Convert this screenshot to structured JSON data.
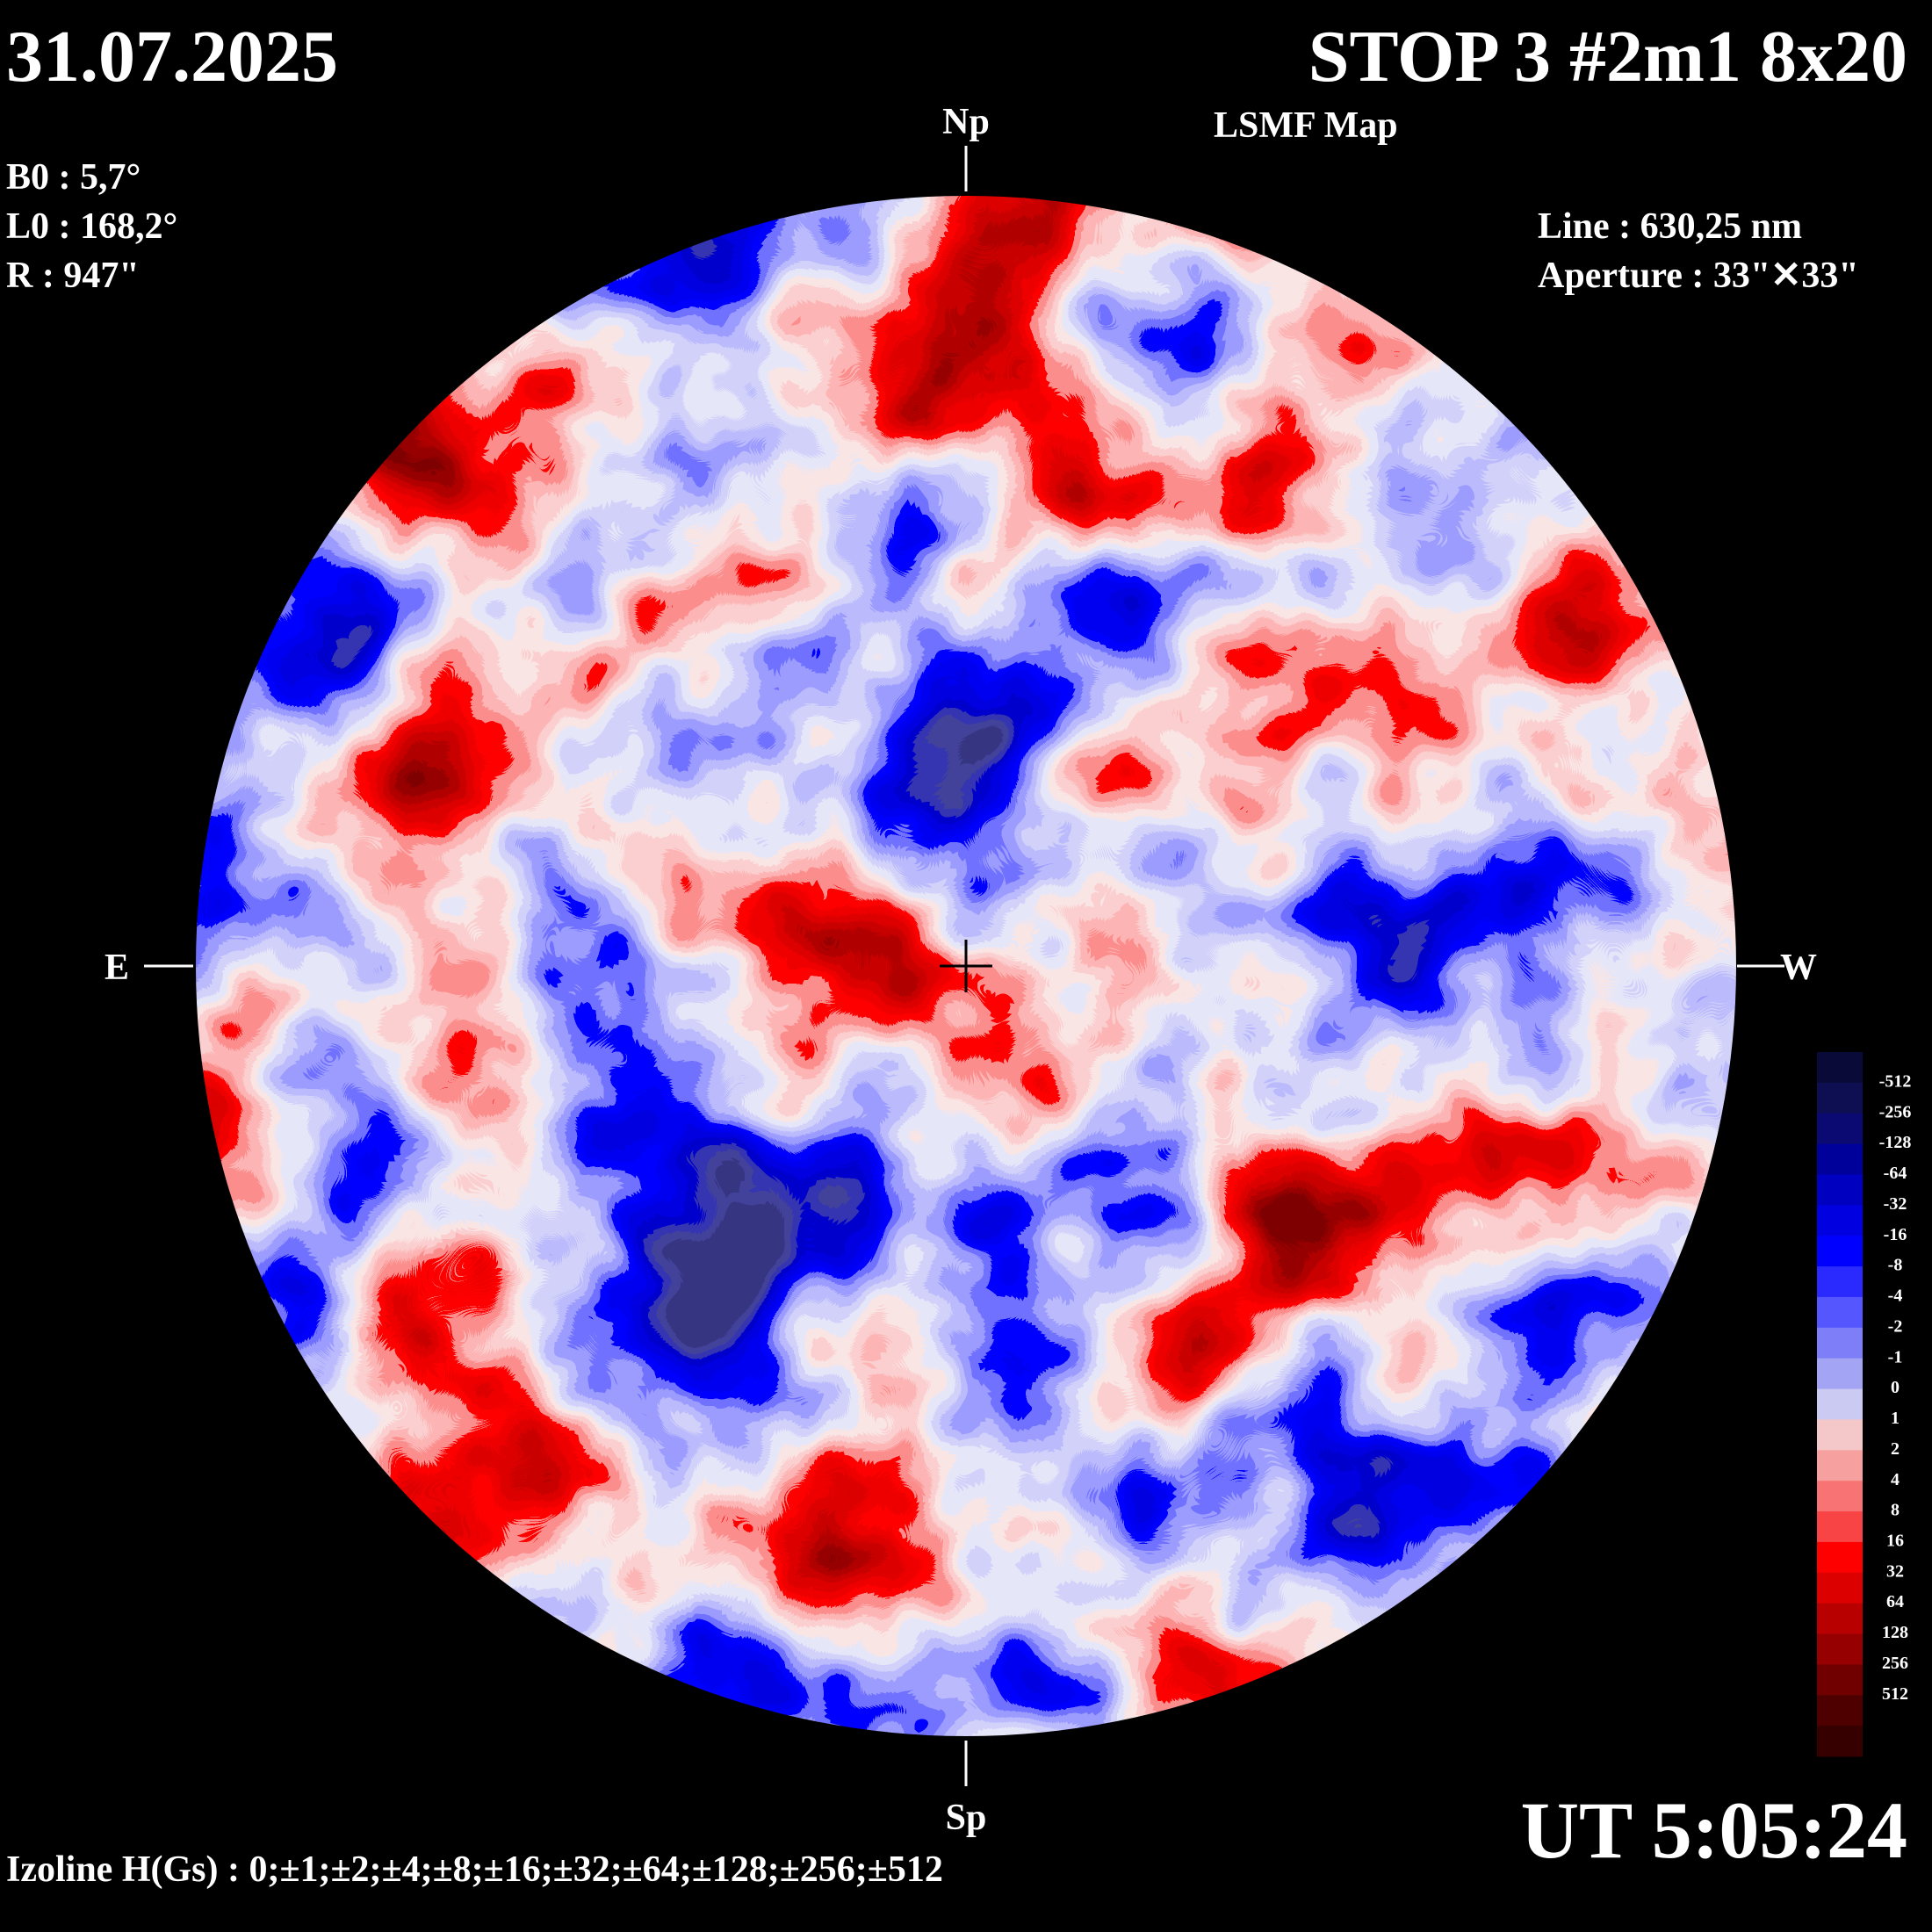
{
  "header": {
    "date": "31.07.2025",
    "title": "STOP 3 #2m1 8x20",
    "subtitle": "LSMF  Map",
    "params_left": [
      "B0 : 5,7°",
      "L0 : 168,2°",
      "R  : 947\""
    ],
    "params_right": [
      "Line :  630,25 nm",
      "Aperture : 33\"✕33\""
    ]
  },
  "compass": {
    "north": "Np",
    "south": "Sp",
    "east": "E",
    "west": "W"
  },
  "footer": {
    "time": "UT 5:05:24",
    "izolines": "Izoline H(Gs) : 0;±1;±2;±4;±8;±16;±32;±64;±128;±256;±512"
  },
  "colorbar": {
    "levels": [
      -512,
      -256,
      -128,
      -64,
      -32,
      -16,
      -8,
      -4,
      -2,
      -1,
      0,
      1,
      2,
      4,
      8,
      16,
      32,
      64,
      128,
      256,
      512
    ],
    "colors": [
      "#0a0a38",
      "#0e0e52",
      "#0a0a72",
      "#00009a",
      "#0000c0",
      "#0000e0",
      "#0000ff",
      "#2a2aff",
      "#5656ff",
      "#7e7ef8",
      "#a4a4f4",
      "#cacaf2",
      "#f4c8c8",
      "#f6a0a0",
      "#f87474",
      "#f84444",
      "#ff0000",
      "#dc0000",
      "#b80000",
      "#960000",
      "#700000",
      "#4e0000",
      "#360000"
    ]
  }
}
